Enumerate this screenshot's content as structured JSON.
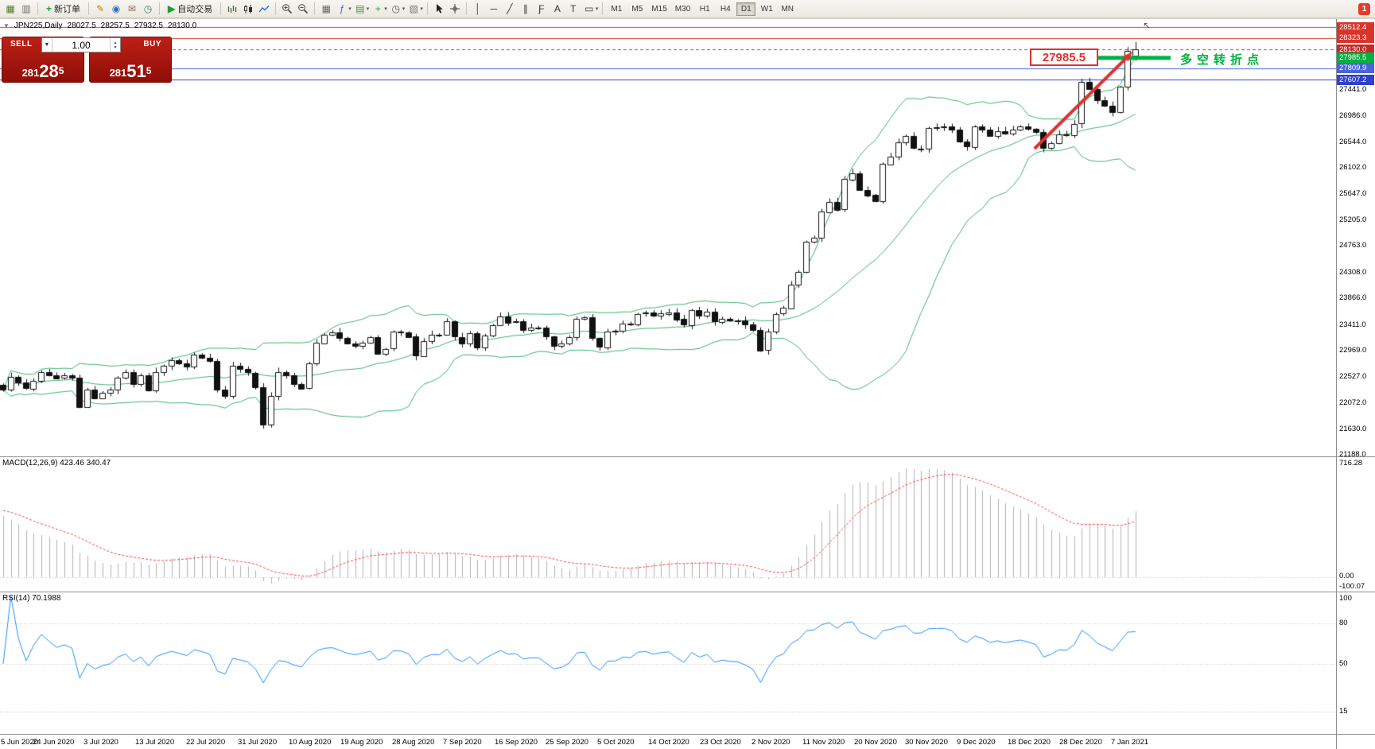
{
  "window": {
    "notification_badge": "1"
  },
  "icons": {
    "dropdown_arrow": "▾",
    "collapse": "▼",
    "volume_dropdown": "▼",
    "spin_up": "▲",
    "spin_down": "▼",
    "mouse_cursor": "↖"
  },
  "toolbar": {
    "groups": [
      {
        "items": [
          {
            "t": "icon",
            "name": "new-chart-icon",
            "glyph": "▦",
            "color": "#4f7a28"
          },
          {
            "t": "icon",
            "name": "profiles-icon",
            "glyph": "▥",
            "color": "#6b6b6b"
          }
        ]
      },
      {
        "items": [
          {
            "t": "button",
            "name": "new-order-button",
            "glyph": "+",
            "glyph_color": "#1f9d3a",
            "label": "新订单"
          }
        ]
      },
      {
        "items": [
          {
            "t": "icon",
            "name": "metaeditor-icon",
            "glyph": "✎",
            "color": "#b8860b"
          },
          {
            "t": "icon",
            "name": "market-icon",
            "glyph": "◉",
            "color": "#2e6fbf"
          },
          {
            "t": "icon",
            "name": "signals-icon",
            "glyph": "✉",
            "color": "#8a6d3b"
          },
          {
            "t": "icon",
            "name": "history-center-icon",
            "glyph": "◷",
            "color": "#2f7d6d"
          }
        ]
      },
      {
        "items": [
          {
            "t": "button",
            "name": "autotrading-button",
            "glyph": "▶",
            "glyph_color": "#1f9d3a",
            "label": "自动交易"
          }
        ]
      },
      {
        "items": [
          {
            "t": "svg",
            "name": "bar-chart-icon",
            "kind": "bars"
          },
          {
            "t": "svg",
            "name": "candlestick-chart-icon",
            "kind": "candles"
          },
          {
            "t": "svg",
            "name": "line-chart-icon",
            "kind": "line"
          }
        ]
      },
      {
        "items": [
          {
            "t": "svg",
            "name": "zoom-in-icon",
            "kind": "zoomin"
          },
          {
            "t": "svg",
            "name": "zoom-out-icon",
            "kind": "zoomout"
          }
        ]
      },
      {
        "items": [
          {
            "t": "icon",
            "name": "tile-windows-icon",
            "glyph": "▦",
            "color": "#666"
          },
          {
            "t": "icon",
            "name": "indicators-icon",
            "glyph": "ƒ",
            "color": "#2e6fbf",
            "arrow": true
          },
          {
            "t": "icon",
            "name": "objects-list-icon",
            "glyph": "▤",
            "color": "#4a8f3c",
            "arrow": true
          },
          {
            "t": "icon",
            "name": "add-indicator-icon",
            "glyph": "+",
            "color": "#1f9d3a",
            "arrow": true
          },
          {
            "t": "icon",
            "name": "period-clock-icon",
            "glyph": "◷",
            "color": "#555",
            "arrow": true
          },
          {
            "t": "icon",
            "name": "templates-icon",
            "glyph": "▧",
            "color": "#777",
            "arrow": true
          }
        ]
      },
      {
        "items": [
          {
            "t": "svg",
            "name": "cursor-icon",
            "kind": "cursor"
          },
          {
            "t": "svg",
            "name": "crosshair-icon",
            "kind": "crosshair"
          }
        ]
      },
      {
        "items": [
          {
            "t": "icon",
            "name": "vertical-line-icon",
            "glyph": "│",
            "color": "#333"
          },
          {
            "t": "icon",
            "name": "horizontal-line-icon",
            "glyph": "─",
            "color": "#333"
          },
          {
            "t": "icon",
            "name": "trendline-icon",
            "glyph": "╱",
            "color": "#333"
          },
          {
            "t": "icon",
            "name": "channel-icon",
            "glyph": "∥",
            "color": "#333"
          },
          {
            "t": "icon",
            "name": "fibonacci-icon",
            "glyph": "Ƒ",
            "color": "#333"
          },
          {
            "t": "icon",
            "name": "text-icon",
            "glyph": "A",
            "color": "#333"
          },
          {
            "t": "icon",
            "name": "text-label-icon",
            "glyph": "T",
            "color": "#333"
          },
          {
            "t": "icon",
            "name": "shapes-icon",
            "glyph": "▭",
            "color": "#333",
            "arrow": true
          }
        ]
      },
      {
        "items": [
          {
            "t": "tf"
          }
        ]
      }
    ],
    "timeframes": [
      "M1",
      "M5",
      "M15",
      "M30",
      "H1",
      "H4",
      "D1",
      "W1",
      "MN"
    ],
    "active_timeframe": "D1"
  },
  "chart_header": {
    "symbol_period": "JPN225,Daily",
    "open": "28027.5",
    "high": "28257.5",
    "low": "27932.5",
    "close": "28130.0"
  },
  "one_click": {
    "sell_label": "SELL",
    "buy_label": "BUY",
    "volume": "1.00",
    "sell_price": {
      "small": "281",
      "big": "28",
      "sup": "5"
    },
    "buy_price": {
      "small": "281",
      "big": "51",
      "sup": "5"
    }
  },
  "annotations": {
    "price_label": "27985.5",
    "note": "多空转折点"
  },
  "price_axis": {
    "ticks": [
      {
        "label": "27441.0",
        "value": 27441.0
      },
      {
        "label": "26986.0",
        "value": 26986.0
      },
      {
        "label": "26544.0",
        "value": 26544.0
      },
      {
        "label": "26102.0",
        "value": 26102.0
      },
      {
        "label": "25647.0",
        "value": 25647.0
      },
      {
        "label": "25205.0",
        "value": 25205.0
      },
      {
        "label": "24763.0",
        "value": 24763.0
      },
      {
        "label": "24308.0",
        "value": 24308.0
      },
      {
        "label": "23866.0",
        "value": 23866.0
      },
      {
        "label": "23411.0",
        "value": 23411.0
      },
      {
        "label": "22969.0",
        "value": 22969.0
      },
      {
        "label": "22527.0",
        "value": 22527.0
      },
      {
        "label": "22072.0",
        "value": 22072.0
      },
      {
        "label": "21630.0",
        "value": 21630.0
      },
      {
        "label": "21188.0",
        "value": 21188.0
      }
    ],
    "tags": [
      {
        "label": "28512.4",
        "value": 28512.4,
        "bg": "#d9342b"
      },
      {
        "label": "28323.3",
        "value": 28323.3,
        "bg": "#d9342b"
      },
      {
        "label": "28130.0",
        "value": 28130.0,
        "bg": "#c62828"
      },
      {
        "label": "27985.5",
        "value": 27985.5,
        "bg": "#00b140"
      },
      {
        "label": "27809.9",
        "value": 27809.9,
        "bg": "#4a63d8"
      },
      {
        "label": "27607.2",
        "value": 27607.2,
        "bg": "#2f3fd0"
      }
    ]
  },
  "macd_panel": {
    "label": "MACD(12,26,9) 423.46 340.47",
    "axis": [
      "716.28",
      "0.00",
      "-100.07"
    ]
  },
  "rsi_panel": {
    "label": "RSI(14) 70.1988",
    "axis": [
      {
        "label": "100",
        "value": 100
      },
      {
        "label": "80",
        "value": 80
      },
      {
        "label": "50",
        "value": 50
      },
      {
        "label": "15",
        "value": 15
      }
    ]
  },
  "time_axis": {
    "labels": [
      "5 Jun 2020",
      "24 Jun 2020",
      "3 Jul 2020",
      "13 Jul 2020",
      "22 Jul 2020",
      "31 Jul 2020",
      "10 Aug 2020",
      "19 Aug 2020",
      "28 Aug 2020",
      "7 Sep 2020",
      "16 Sep 2020",
      "25 Sep 2020",
      "5 Oct 2020",
      "14 Oct 2020",
      "23 Oct 2020",
      "2 Nov 2020",
      "11 Nov 2020",
      "20 Nov 2020",
      "30 Nov 2020",
      "9 Dec 2020",
      "18 Dec 2020",
      "28 Dec 2020",
      "7 Jan 2021"
    ]
  },
  "chart_data": {
    "type": "candlestick",
    "symbol": "JPN225",
    "period": "Daily",
    "ylim": [
      21188.0,
      28512.4
    ],
    "closes": [
      22300,
      22520,
      22420,
      22320,
      22455,
      22610,
      22555,
      22500,
      22545,
      22510,
      22010,
      22310,
      22160,
      22250,
      22305,
      22510,
      22610,
      22410,
      22555,
      22290,
      22605,
      22715,
      22805,
      22755,
      22695,
      22905,
      22855,
      22795,
      22305,
      22195,
      22715,
      22655,
      22595,
      22345,
      21710,
      22195,
      22605,
      22555,
      22405,
      22330,
      22750,
      23105,
      23250,
      23290,
      23195,
      23095,
      23050,
      23110,
      23205,
      22920,
      23005,
      23295,
      23290,
      23210,
      22880,
      23140,
      23250,
      23245,
      23470,
      23205,
      23090,
      23270,
      23030,
      23235,
      23410,
      23560,
      23455,
      23475,
      23320,
      23360,
      23360,
      23210,
      23050,
      23090,
      23205,
      23515,
      23540,
      23185,
      23030,
      23300,
      23310,
      23435,
      23420,
      23600,
      23620,
      23560,
      23605,
      23630,
      23510,
      23410,
      23670,
      23570,
      23640,
      23470,
      23520,
      23494,
      23485,
      23420,
      23330,
      22977,
      23295,
      23600,
      23700,
      24105,
      24325,
      24840,
      24906,
      25350,
      25521,
      25385,
      25907,
      26014,
      25728,
      25634,
      25527,
      26165,
      26297,
      26537,
      26644,
      26433,
      26434,
      26787,
      26800,
      26809,
      26751,
      26547,
      26467,
      26817,
      26756,
      26652,
      26732,
      26687,
      26757,
      26806,
      26763,
      26714,
      26436,
      26524,
      26668,
      26657,
      26854,
      27568,
      27444,
      27258,
      27159,
      27056,
      27490,
      28100,
      28130
    ],
    "last_ohlc": {
      "open": 28027.5,
      "high": 28257.5,
      "low": 27932.5,
      "close": 28130.0
    },
    "indicators": {
      "bollinger": {
        "period": 20,
        "deviation": 2,
        "color": "#3cb371"
      },
      "macd": {
        "fast": 12,
        "slow": 26,
        "signal": 9,
        "value": 423.46,
        "signal_value": 340.47
      },
      "rsi": {
        "period": 14,
        "value": 70.1988
      }
    },
    "levels": [
      {
        "price": 28512.4,
        "color": "#d9342b",
        "style": "solid"
      },
      {
        "price": 28323.3,
        "color": "#d9342b",
        "style": "solid"
      },
      {
        "price": 28130.0,
        "color": "#d9342b",
        "style": "dash"
      },
      {
        "price": 27809.9,
        "color": "#4a63d8",
        "style": "solid"
      },
      {
        "price": 27607.2,
        "color": "#2f3fd0",
        "style": "solid"
      }
    ],
    "green_segment": {
      "price": 27985.5,
      "from_index": 143.1,
      "to_index": 152.6,
      "color": "#00b140",
      "width": 5
    },
    "trend_arrow": {
      "from_index": 134.8,
      "from_price": 26430,
      "to_index": 147.6,
      "to_price": 28085,
      "color": "#e03131",
      "width": 4
    },
    "macd_axis": {
      "max": 716.28,
      "zero": 0.0,
      "min": -100.07
    },
    "rsi_levels": [
      80,
      50,
      15
    ]
  }
}
